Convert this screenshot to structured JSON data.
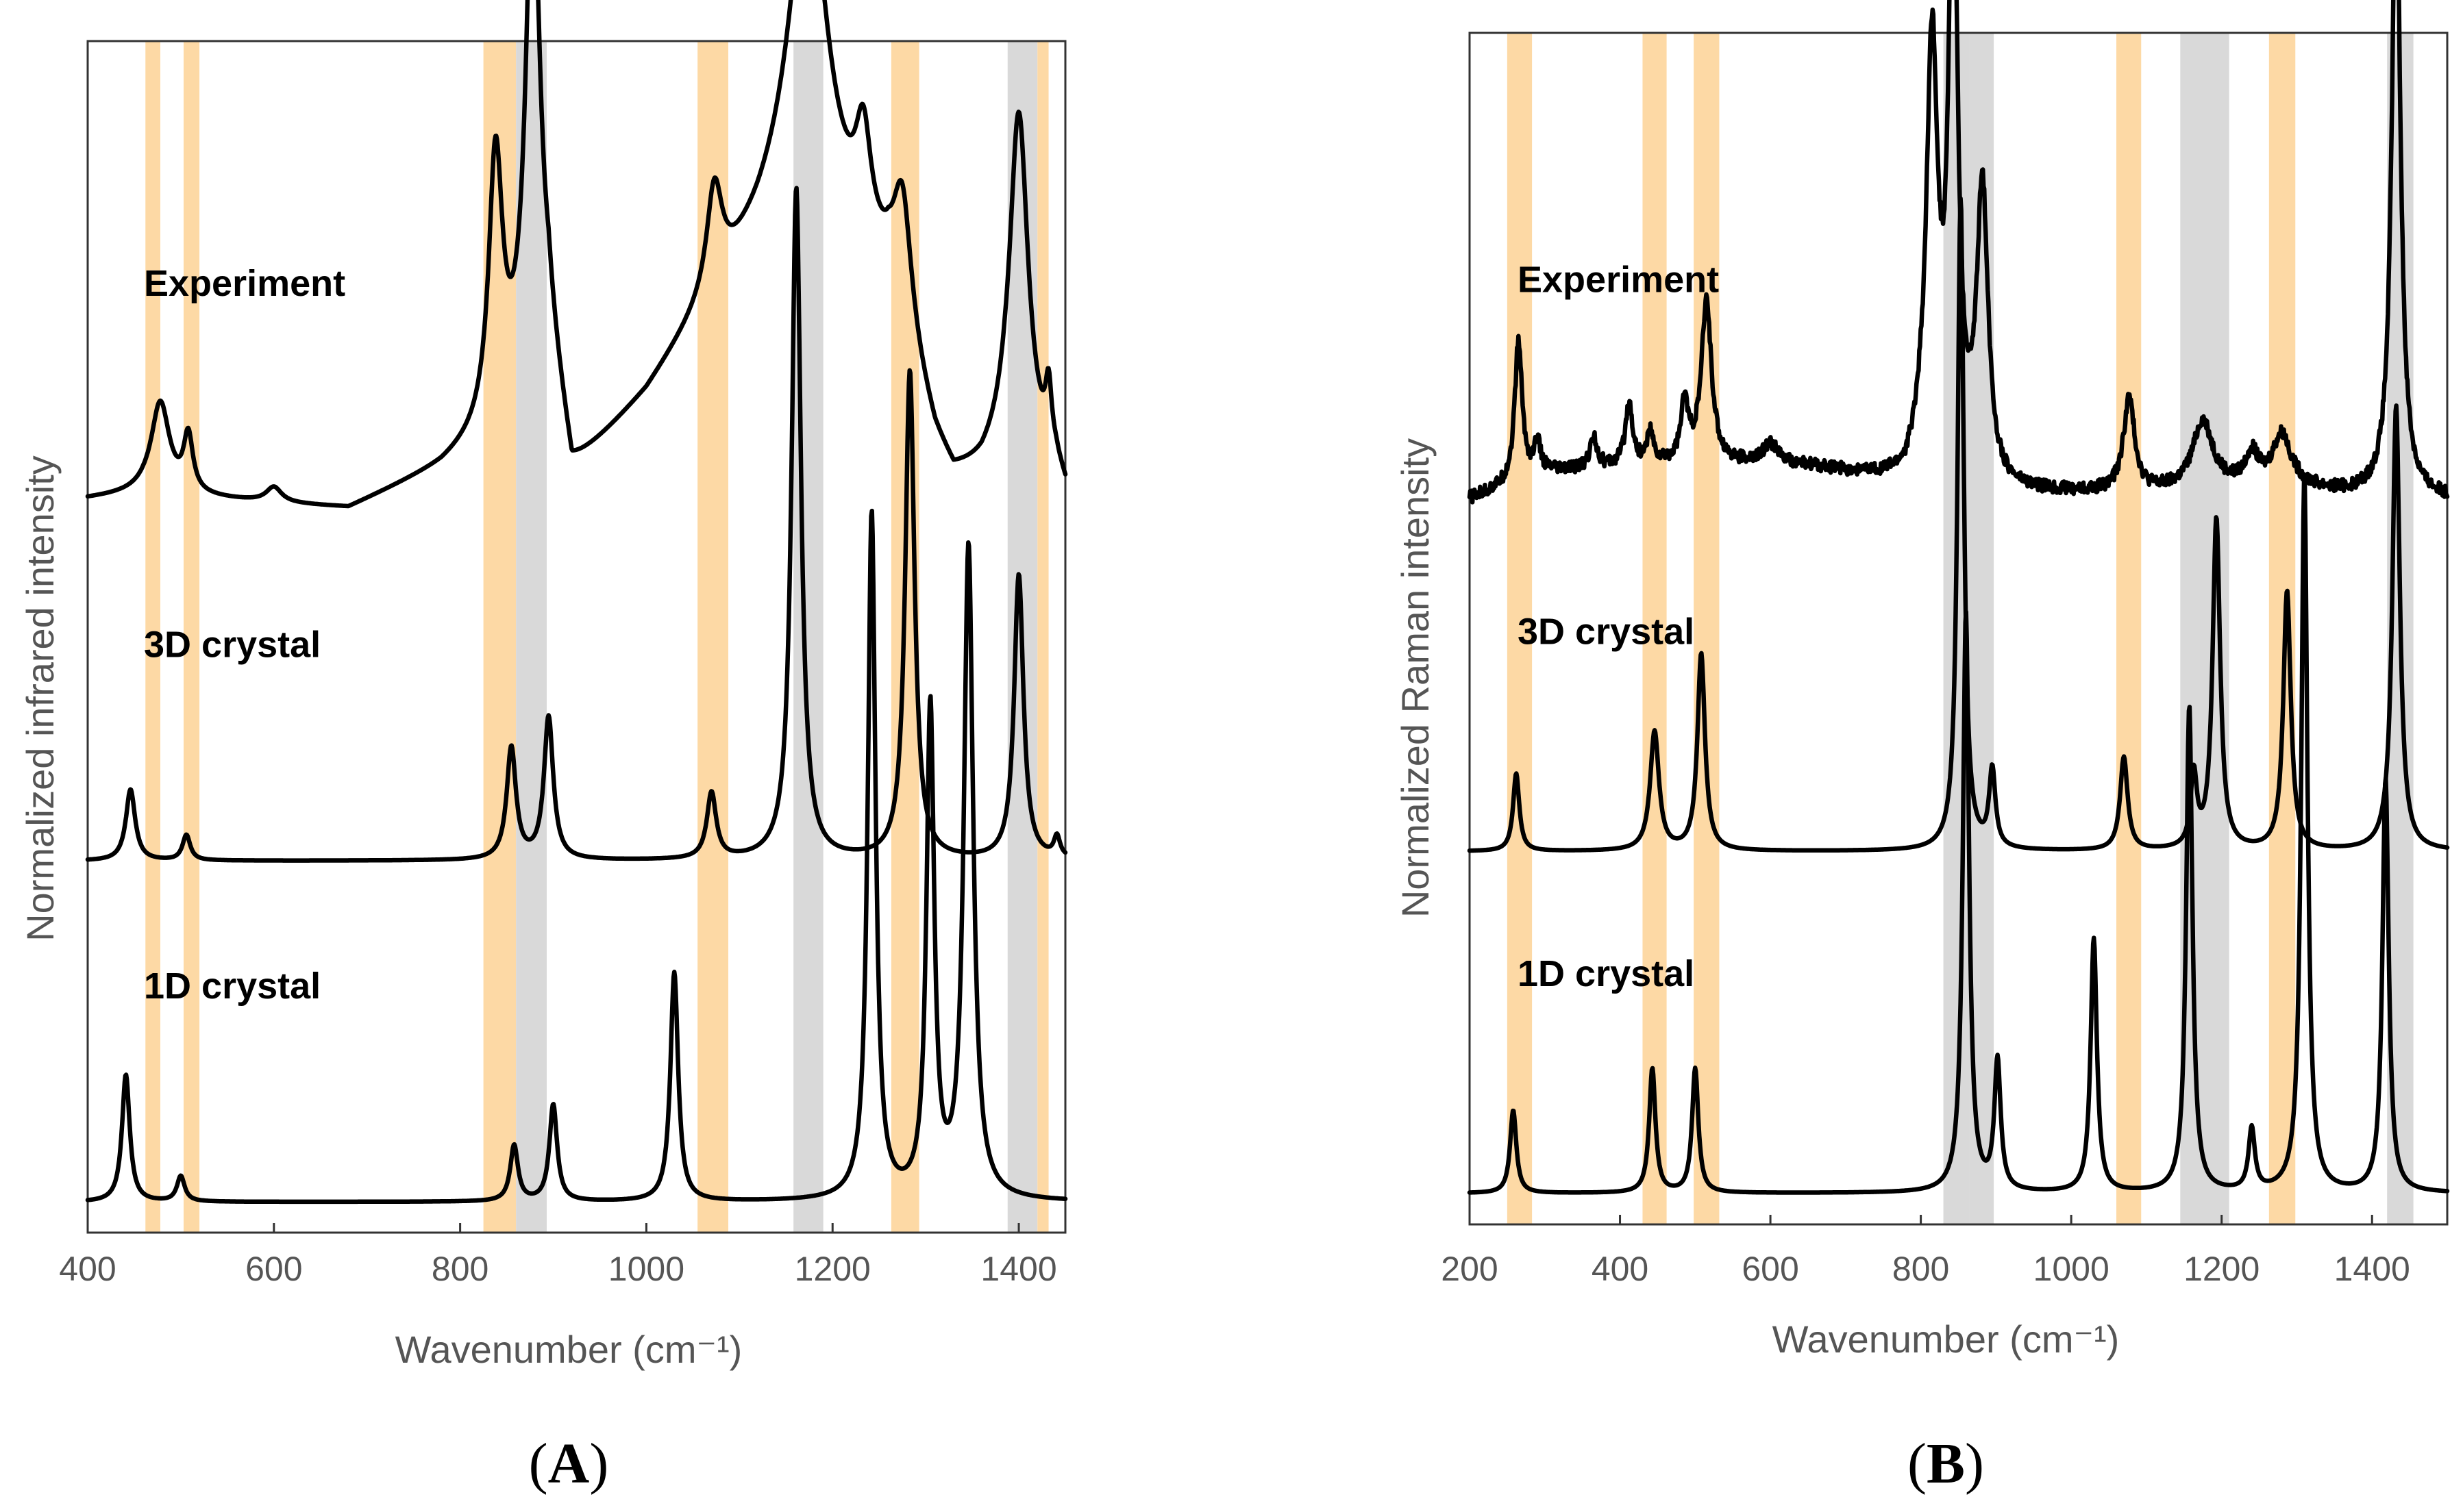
{
  "chart_data": [
    {
      "type": "line",
      "panel_label": "A",
      "xlabel": "Wavenumber (cm⁻¹)",
      "ylabel": "Normalized infrared intensity",
      "xlim": [
        400,
        1450
      ],
      "xticks": [
        400,
        600,
        800,
        1000,
        1200,
        1400
      ],
      "y_ticks_shown": false,
      "highlight_bands": [
        {
          "from": 462,
          "to": 478,
          "color": "#fdd9a5"
        },
        {
          "from": 503,
          "to": 520,
          "color": "#fdd9a5"
        },
        {
          "from": 825,
          "to": 860,
          "color": "#fdd9a5"
        },
        {
          "from": 860,
          "to": 893,
          "color": "#d9d9d9"
        },
        {
          "from": 1055,
          "to": 1088,
          "color": "#fdd9a5"
        },
        {
          "from": 1158,
          "to": 1190,
          "color": "#d9d9d9"
        },
        {
          "from": 1263,
          "to": 1293,
          "color": "#fdd9a5"
        },
        {
          "from": 1388,
          "to": 1420,
          "color": "#d9d9d9"
        },
        {
          "from": 1420,
          "to": 1432,
          "color": "#fdd9a5"
        }
      ],
      "series": [
        {
          "name": "Experiment",
          "baseline": 6.9,
          "background": [
            [
              400,
              0
            ],
            [
              460,
              0.05
            ],
            [
              600,
              -0.05
            ],
            [
              680,
              -0.1
            ],
            [
              780,
              0.3
            ],
            [
              830,
              0.6
            ],
            [
              895,
              1.5
            ],
            [
              920,
              0.2
            ],
            [
              1000,
              1.0
            ],
            [
              1060,
              1.8
            ],
            [
              1120,
              2.6
            ],
            [
              1160,
              3.2
            ],
            [
              1260,
              2.0
            ],
            [
              1310,
              0.5
            ],
            [
              1330,
              0.15
            ],
            [
              1360,
              0.2
            ],
            [
              1385,
              0.4
            ],
            [
              1440,
              0.2
            ],
            [
              1450,
              0
            ]
          ],
          "peaks": [
            {
              "x": 478,
              "h": 0.9,
              "w": 12
            },
            {
              "x": 508,
              "h": 0.55,
              "w": 6
            },
            {
              "x": 600,
              "h": 0.15,
              "w": 10
            },
            {
              "x": 838,
              "h": 2.6,
              "w": 9
            },
            {
              "x": 878,
              "h": 4.9,
              "w": 9
            },
            {
              "x": 1073,
              "h": 1.0,
              "w": 10
            },
            {
              "x": 1175,
              "h": 2.9,
              "w": 24
            },
            {
              "x": 1233,
              "h": 1.0,
              "w": 10
            },
            {
              "x": 1275,
              "h": 1.3,
              "w": 12
            },
            {
              "x": 1400,
              "h": 3.4,
              "w": 12
            },
            {
              "x": 1432,
              "h": 0.6,
              "w": 4
            }
          ]
        },
        {
          "name": "3D crystal",
          "baseline": 3.35,
          "background": [],
          "peaks": [
            {
              "x": 446,
              "h": 0.7,
              "w": 6
            },
            {
              "x": 506,
              "h": 0.25,
              "w": 5
            },
            {
              "x": 855,
              "h": 1.1,
              "w": 6
            },
            {
              "x": 895,
              "h": 1.4,
              "w": 6
            },
            {
              "x": 1070,
              "h": 0.65,
              "w": 6
            },
            {
              "x": 1161,
              "h": 6.6,
              "w": 6
            },
            {
              "x": 1283,
              "h": 4.8,
              "w": 6
            },
            {
              "x": 1400,
              "h": 2.8,
              "w": 6
            },
            {
              "x": 1441,
              "h": 0.2,
              "w": 4
            }
          ]
        },
        {
          "name": "1D crystal",
          "baseline": 0.0,
          "background": [],
          "peaks": [
            {
              "x": 441,
              "h": 1.25,
              "w": 5
            },
            {
              "x": 500,
              "h": 0.25,
              "w": 5
            },
            {
              "x": 858,
              "h": 0.55,
              "w": 5
            },
            {
              "x": 900,
              "h": 0.95,
              "w": 5
            },
            {
              "x": 1030,
              "h": 2.25,
              "w": 5
            },
            {
              "x": 1242,
              "h": 6.75,
              "w": 5
            },
            {
              "x": 1305,
              "h": 4.8,
              "w": 5
            },
            {
              "x": 1346,
              "h": 6.4,
              "w": 6
            }
          ]
        }
      ]
    },
    {
      "type": "line",
      "panel_label": "B",
      "xlabel": "Wavenumber (cm⁻¹)",
      "ylabel": "Normalized Raman intensity",
      "xlim": [
        200,
        1500
      ],
      "xticks": [
        200,
        400,
        600,
        800,
        1000,
        1200,
        1400
      ],
      "y_ticks_shown": false,
      "highlight_bands": [
        {
          "from": 250,
          "to": 283,
          "color": "#fdd9a5"
        },
        {
          "from": 430,
          "to": 462,
          "color": "#fdd9a5"
        },
        {
          "from": 498,
          "to": 532,
          "color": "#fdd9a5"
        },
        {
          "from": 830,
          "to": 865,
          "color": "#d9d9d9"
        },
        {
          "from": 865,
          "to": 897,
          "color": "#d9d9d9"
        },
        {
          "from": 1060,
          "to": 1093,
          "color": "#fdd9a5"
        },
        {
          "from": 1145,
          "to": 1210,
          "color": "#d9d9d9"
        },
        {
          "from": 1263,
          "to": 1298,
          "color": "#fdd9a5"
        },
        {
          "from": 1420,
          "to": 1455,
          "color": "#d9d9d9"
        }
      ],
      "series": [
        {
          "name": "Experiment",
          "baseline": 6.7,
          "background": [
            [
              200,
              0
            ],
            [
              300,
              0.25
            ],
            [
              500,
              0.35
            ],
            [
              650,
              0.3
            ],
            [
              780,
              0.15
            ],
            [
              800,
              0.35
            ],
            [
              900,
              0.05
            ],
            [
              1100,
              0.05
            ],
            [
              1200,
              0.1
            ],
            [
              1300,
              0.1
            ],
            [
              1360,
              0.05
            ],
            [
              1500,
              0
            ]
          ],
          "peaks": [
            {
              "x": 265,
              "h": 1.35,
              "w": 6
            },
            {
              "x": 290,
              "h": 0.3,
              "w": 5
            },
            {
              "x": 365,
              "h": 0.3,
              "w": 6
            },
            {
              "x": 412,
              "h": 0.6,
              "w": 6
            },
            {
              "x": 440,
              "h": 0.3,
              "w": 5
            },
            {
              "x": 486,
              "h": 0.55,
              "w": 6
            },
            {
              "x": 515,
              "h": 1.55,
              "w": 8
            },
            {
              "x": 600,
              "h": 0.2,
              "w": 12
            },
            {
              "x": 815,
              "h": 4.0,
              "w": 9
            },
            {
              "x": 843,
              "h": 5.9,
              "w": 7
            },
            {
              "x": 882,
              "h": 2.8,
              "w": 9
            },
            {
              "x": 1077,
              "h": 0.9,
              "w": 9
            },
            {
              "x": 1175,
              "h": 0.65,
              "w": 16
            },
            {
              "x": 1240,
              "h": 0.3,
              "w": 10
            },
            {
              "x": 1280,
              "h": 0.5,
              "w": 15
            },
            {
              "x": 1432,
              "h": 6.1,
              "w": 7
            }
          ]
        },
        {
          "name": "3D crystal",
          "baseline": 3.3,
          "background": [],
          "peaks": [
            {
              "x": 262,
              "h": 0.75,
              "w": 5
            },
            {
              "x": 446,
              "h": 1.15,
              "w": 7
            },
            {
              "x": 508,
              "h": 1.9,
              "w": 6
            },
            {
              "x": 853,
              "h": 6.3,
              "w": 5
            },
            {
              "x": 895,
              "h": 0.75,
              "w": 5
            },
            {
              "x": 1070,
              "h": 0.9,
              "w": 6
            },
            {
              "x": 1163,
              "h": 0.7,
              "w": 5
            },
            {
              "x": 1193,
              "h": 3.2,
              "w": 6
            },
            {
              "x": 1287,
              "h": 2.5,
              "w": 6
            },
            {
              "x": 1432,
              "h": 4.3,
              "w": 6
            }
          ]
        },
        {
          "name": "1D crystal",
          "baseline": 0.0,
          "background": [],
          "peaks": [
            {
              "x": 258,
              "h": 0.8,
              "w": 5
            },
            {
              "x": 443,
              "h": 1.2,
              "w": 5
            },
            {
              "x": 500,
              "h": 1.2,
              "w": 5
            },
            {
              "x": 860,
              "h": 5.6,
              "w": 5
            },
            {
              "x": 902,
              "h": 1.25,
              "w": 5
            },
            {
              "x": 1030,
              "h": 2.45,
              "w": 5
            },
            {
              "x": 1157,
              "h": 4.7,
              "w": 5
            },
            {
              "x": 1240,
              "h": 0.6,
              "w": 5
            },
            {
              "x": 1310,
              "h": 6.9,
              "w": 5
            },
            {
              "x": 1418,
              "h": 4.0,
              "w": 5
            }
          ]
        }
      ]
    }
  ]
}
